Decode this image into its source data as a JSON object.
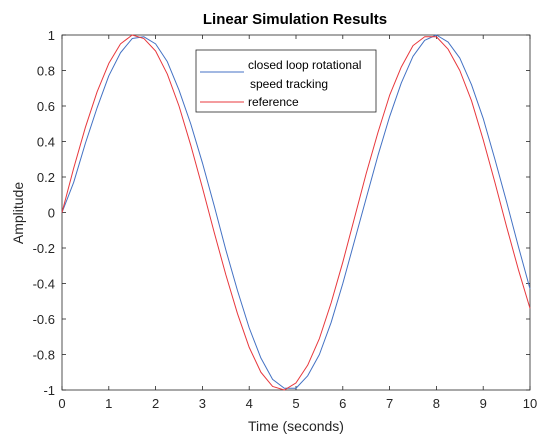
{
  "chart_data": {
    "type": "line",
    "title": "Linear Simulation Results",
    "xlabel": "Time (seconds)",
    "ylabel": "Amplitude",
    "xlim": [
      0,
      10
    ],
    "ylim": [
      -1,
      1
    ],
    "xticks": [
      0,
      1,
      2,
      3,
      4,
      5,
      6,
      7,
      8,
      9,
      10
    ],
    "xtick_labels": [
      "0",
      "1",
      "2",
      "3",
      "4",
      "5",
      "6",
      "7",
      "8",
      "9",
      "10"
    ],
    "yticks": [
      1,
      0.8,
      0.6,
      0.4,
      0.2,
      0,
      -0.2,
      -0.4,
      -0.6,
      -0.8,
      -1
    ],
    "ytick_labels": [
      "1",
      "0.8",
      "0.6",
      "0.4",
      "0.2",
      "0",
      "-0.2",
      "-0.4",
      "-0.6",
      "-0.8",
      "-1"
    ],
    "grid": false,
    "legend_position": "top-center",
    "legend_lines": [
      "closed loop rotational",
      "speed tracking",
      "reference"
    ],
    "series": [
      {
        "name": "closed loop rotational speed tracking",
        "color": "#4472c4",
        "x": [
          0,
          0.25,
          0.5,
          0.75,
          1,
          1.25,
          1.5,
          1.75,
          2,
          2.25,
          2.5,
          2.75,
          3,
          3.25,
          3.5,
          3.75,
          4,
          4.25,
          4.5,
          4.75,
          5,
          5.25,
          5.5,
          5.75,
          6,
          6.25,
          6.5,
          6.75,
          7,
          7.25,
          7.5,
          7.75,
          8,
          8.25,
          8.5,
          8.75,
          9,
          9.25,
          9.5,
          9.75,
          10
        ],
        "y": [
          0,
          0.17,
          0.39,
          0.59,
          0.77,
          0.9,
          0.98,
          0.99,
          0.95,
          0.85,
          0.69,
          0.5,
          0.28,
          0.04,
          -0.21,
          -0.44,
          -0.65,
          -0.82,
          -0.94,
          -0.99,
          -0.99,
          -0.92,
          -0.8,
          -0.62,
          -0.4,
          -0.16,
          0.08,
          0.32,
          0.54,
          0.73,
          0.88,
          0.97,
          1.0,
          0.96,
          0.87,
          0.72,
          0.53,
          0.3,
          0.06,
          -0.19,
          -0.43
        ]
      },
      {
        "name": "reference",
        "color": "#e8383d",
        "x": [
          0,
          0.25,
          0.5,
          0.75,
          1,
          1.25,
          1.5,
          1.75,
          2,
          2.25,
          2.5,
          2.75,
          3,
          3.25,
          3.5,
          3.75,
          4,
          4.25,
          4.5,
          4.75,
          5,
          5.25,
          5.5,
          5.75,
          6,
          6.25,
          6.5,
          6.75,
          7,
          7.25,
          7.5,
          7.75,
          8,
          8.25,
          8.5,
          8.75,
          9,
          9.25,
          9.5,
          9.75,
          10
        ],
        "y": [
          0,
          0.25,
          0.48,
          0.68,
          0.84,
          0.95,
          1.0,
          0.98,
          0.91,
          0.78,
          0.6,
          0.38,
          0.14,
          -0.11,
          -0.35,
          -0.57,
          -0.76,
          -0.9,
          -0.98,
          -1.0,
          -0.96,
          -0.86,
          -0.71,
          -0.51,
          -0.28,
          -0.03,
          0.22,
          0.45,
          0.66,
          0.82,
          0.94,
          0.99,
          0.99,
          0.92,
          0.8,
          0.63,
          0.41,
          0.17,
          -0.08,
          -0.32,
          -0.54
        ]
      }
    ]
  }
}
